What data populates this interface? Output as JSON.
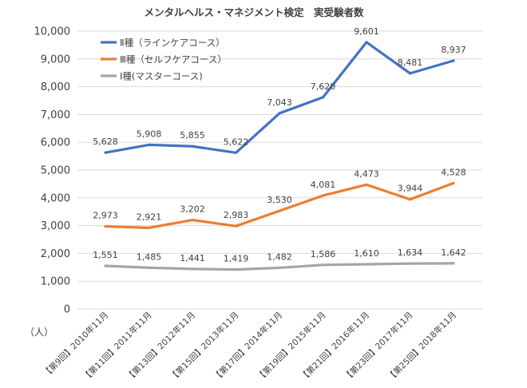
{
  "chart_data": {
    "type": "line",
    "title": "メンタルヘルス・マネジメント検定　実受験者数",
    "ylabel": "（人）",
    "ylim": [
      0,
      10000
    ],
    "yticks": [
      "0",
      "1,000",
      "2,000",
      "3,000",
      "4,000",
      "5,000",
      "6,000",
      "7,000",
      "8,000",
      "9,000",
      "10,000"
    ],
    "grid": true,
    "legend_position": "top-left",
    "categories": [
      "【第9回】2010年11月",
      "【第11回】2011年11月",
      "【第13回】2012年11月",
      "【第15回】2013年11月",
      "【第17回】2014年11月",
      "【第19回】2015年11月",
      "【第21回】2016年11月",
      "【第23回】2017年11月",
      "【第25回】2018年11月"
    ],
    "series": [
      {
        "name": "Ⅱ種（ラインケアコース）",
        "color": "#4472c4",
        "values": [
          5628,
          5908,
          5855,
          5622,
          7043,
          7620,
          9601,
          8481,
          8937
        ],
        "labels": [
          "5,628",
          "5,908",
          "5,855",
          "5,622",
          "7,043",
          "7,620",
          "9,601",
          "8,481",
          "8,937"
        ]
      },
      {
        "name": "Ⅲ種（セルフケアコース）",
        "color": "#ed7d31",
        "values": [
          2973,
          2921,
          3202,
          2983,
          3530,
          4081,
          4473,
          3944,
          4528
        ],
        "labels": [
          "2,973",
          "2,921",
          "3,202",
          "2,983",
          "3,530",
          "4,081",
          "4,473",
          "3,944",
          "4,528"
        ]
      },
      {
        "name": "Ⅰ種(マスターコース)",
        "color": "#a5a5a5",
        "values": [
          1551,
          1485,
          1441,
          1419,
          1482,
          1586,
          1610,
          1634,
          1642
        ],
        "labels": [
          "1,551",
          "1,485",
          "1,441",
          "1,419",
          "1,482",
          "1,586",
          "1,610",
          "1,634",
          "1,642"
        ]
      }
    ]
  }
}
